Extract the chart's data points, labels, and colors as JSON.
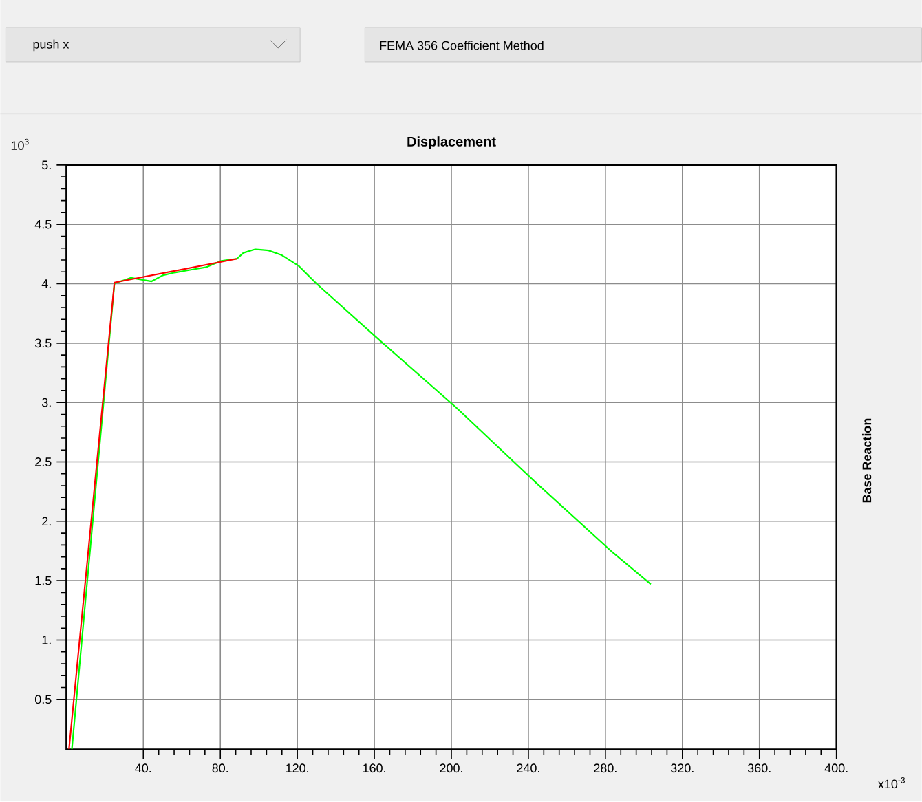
{
  "chart_data": {
    "type": "line",
    "title": "Displacement",
    "ylabel": "Base Reaction",
    "annotations": [
      "10$^{3}$",
      "x10$^{-3}$",
      "push x",
      "FEMA 356 Coefficient Method"
    ],
    "xlim": [
      0,
      400
    ],
    "ylim": [
      0.08,
      5
    ],
    "xticks": [
      {
        "value": 40,
        "label": "40."
      },
      {
        "value": 80,
        "label": "80."
      },
      {
        "value": 120,
        "label": "120."
      },
      {
        "value": 160,
        "label": "160."
      },
      {
        "value": 200,
        "label": "200."
      },
      {
        "value": 240,
        "label": "240."
      },
      {
        "value": 280,
        "label": "280."
      },
      {
        "value": 320,
        "label": "320."
      },
      {
        "value": 360,
        "label": "360."
      },
      {
        "value": 400,
        "label": "400."
      }
    ],
    "yticks": [
      0.5,
      {
        "value": 1,
        "label": "1."
      },
      1.5,
      {
        "value": 2,
        "label": "2."
      },
      2.5,
      {
        "value": 3,
        "label": "3."
      },
      3.5,
      {
        "value": 4,
        "label": "4."
      },
      4.5,
      {
        "value": 5,
        "label": "5."
      }
    ],
    "grid": true,
    "line_style": "solid",
    "series": [
      {
        "color": "#00ff00",
        "x": [
          2.9,
          25,
          26.4,
          33.6,
          44.3,
          50,
          55,
          65.7,
          72.9,
          80,
          83.6,
          88.6,
          92,
          98,
          105,
          112,
          120.7,
          130,
          163,
          203,
          243.6,
          283.6,
          303.6
        ],
        "values": [
          0.08,
          4.0,
          4.01,
          4.05,
          4.02,
          4.07,
          4.09,
          4.12,
          4.14,
          4.19,
          4.2,
          4.21,
          4.26,
          4.29,
          4.28,
          4.24,
          4.15,
          4.0,
          3.52,
          2.95,
          2.33,
          1.74,
          1.47
        ]
      },
      {
        "color": "#ff0000",
        "x": [
          1.4,
          25,
          88.6
        ],
        "values": [
          0.08,
          4.01,
          4.21
        ]
      }
    ]
  }
}
